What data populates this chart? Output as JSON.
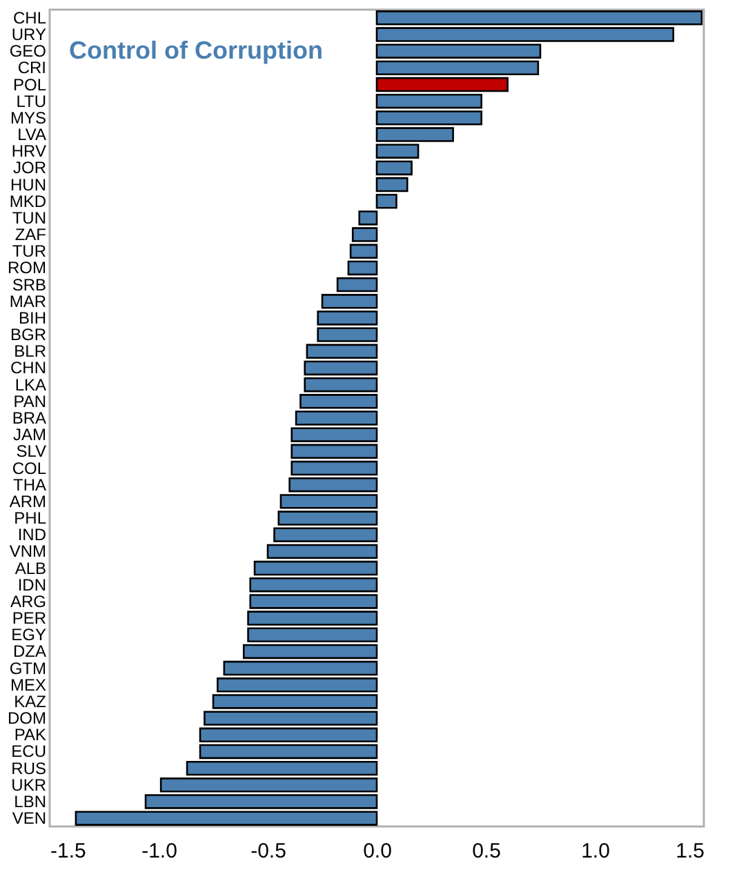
{
  "chart_data": {
    "type": "bar",
    "orientation": "horizontal",
    "title": "Control of Corruption",
    "categories": [
      "CHL",
      "URY",
      "GEO",
      "CRI",
      "POL",
      "LTU",
      "MYS",
      "LVA",
      "HRV",
      "JOR",
      "HUN",
      "MKD",
      "TUN",
      "ZAF",
      "TUR",
      "ROM",
      "SRB",
      "MAR",
      "BIH",
      "BGR",
      "BLR",
      "CHN",
      "LKA",
      "PAN",
      "BRA",
      "JAM",
      "SLV",
      "COL",
      "THA",
      "ARM",
      "PHL",
      "IND",
      "VNM",
      "ALB",
      "IDN",
      "ARG",
      "PER",
      "EGY",
      "DZA",
      "GTM",
      "MEX",
      "KAZ",
      "DOM",
      "PAK",
      "ECU",
      "RUS",
      "UKR",
      "LBN",
      "VEN"
    ],
    "values": [
      1.49,
      1.36,
      0.75,
      0.74,
      0.6,
      0.48,
      0.48,
      0.35,
      0.19,
      0.16,
      0.14,
      0.09,
      -0.08,
      -0.11,
      -0.12,
      -0.13,
      -0.18,
      -0.25,
      -0.27,
      -0.27,
      -0.32,
      -0.33,
      -0.33,
      -0.35,
      -0.37,
      -0.39,
      -0.39,
      -0.39,
      -0.4,
      -0.44,
      -0.45,
      -0.47,
      -0.5,
      -0.56,
      -0.58,
      -0.58,
      -0.59,
      -0.59,
      -0.61,
      -0.7,
      -0.73,
      -0.75,
      -0.79,
      -0.81,
      -0.81,
      -0.87,
      -0.99,
      -1.06,
      -1.38
    ],
    "colors": [
      "#4a7fb0",
      "#4a7fb0",
      "#4a7fb0",
      "#4a7fb0",
      "#c00000",
      "#4a7fb0",
      "#4a7fb0",
      "#4a7fb0",
      "#4a7fb0",
      "#4a7fb0",
      "#4a7fb0",
      "#4a7fb0",
      "#4a7fb0",
      "#4a7fb0",
      "#4a7fb0",
      "#4a7fb0",
      "#4a7fb0",
      "#4a7fb0",
      "#4a7fb0",
      "#4a7fb0",
      "#4a7fb0",
      "#4a7fb0",
      "#4a7fb0",
      "#4a7fb0",
      "#4a7fb0",
      "#4a7fb0",
      "#4a7fb0",
      "#4a7fb0",
      "#4a7fb0",
      "#4a7fb0",
      "#4a7fb0",
      "#4a7fb0",
      "#4a7fb0",
      "#4a7fb0",
      "#4a7fb0",
      "#4a7fb0",
      "#4a7fb0",
      "#4a7fb0",
      "#4a7fb0",
      "#4a7fb0",
      "#4a7fb0",
      "#4a7fb0",
      "#4a7fb0",
      "#4a7fb0",
      "#4a7fb0",
      "#4a7fb0",
      "#4a7fb0",
      "#4a7fb0",
      "#4a7fb0"
    ],
    "xlim": [
      -1.5,
      1.5
    ],
    "xticks": [
      {
        "value": -1.5,
        "label": "-1.5"
      },
      {
        "value": -1,
        "label": "-1.0"
      },
      {
        "value": -0.5,
        "label": "-0.5"
      },
      {
        "value": 0,
        "label": "0.0"
      },
      {
        "value": 0.5,
        "label": "0.5"
      },
      {
        "value": 1,
        "label": "1.0"
      },
      {
        "value": 1.5,
        "label": "1.5"
      }
    ],
    "grid": false
  }
}
